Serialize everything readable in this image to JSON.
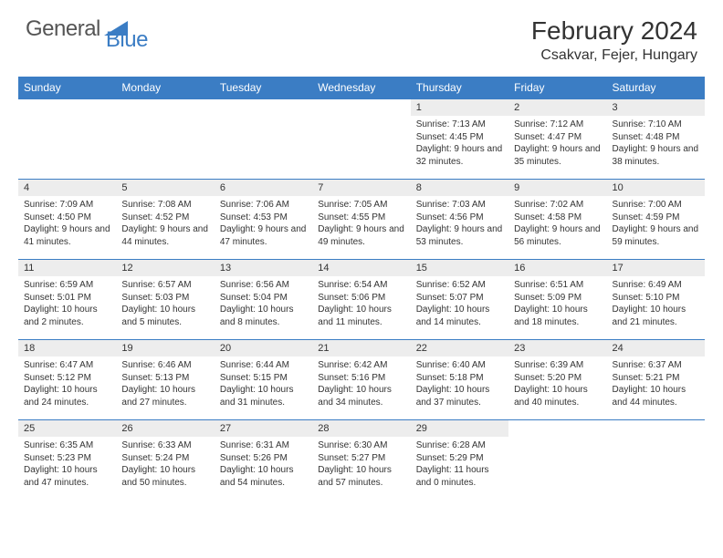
{
  "branding": {
    "word1": "General",
    "word2": "Blue",
    "word1_color": "#555555",
    "word2_color": "#3b7dc4",
    "logo_shape_color": "#3b7dc4"
  },
  "header": {
    "title": "February 2024",
    "location": "Csakvar, Fejer, Hungary"
  },
  "style": {
    "header_bg": "#3b7dc4",
    "header_text": "#ffffff",
    "daynum_bg": "#ededed",
    "row_divider": "#3b7dc4",
    "page_bg": "#ffffff",
    "body_text": "#333333",
    "title_fontsize": 28,
    "location_fontsize": 16,
    "dayhead_fontsize": 12,
    "cell_fontsize": 10
  },
  "weekdays": [
    "Sunday",
    "Monday",
    "Tuesday",
    "Wednesday",
    "Thursday",
    "Friday",
    "Saturday"
  ],
  "weeks": [
    [
      {
        "blank": true
      },
      {
        "blank": true
      },
      {
        "blank": true
      },
      {
        "blank": true
      },
      {
        "day": "1",
        "sunrise": "Sunrise: 7:13 AM",
        "sunset": "Sunset: 4:45 PM",
        "daylight": "Daylight: 9 hours and 32 minutes."
      },
      {
        "day": "2",
        "sunrise": "Sunrise: 7:12 AM",
        "sunset": "Sunset: 4:47 PM",
        "daylight": "Daylight: 9 hours and 35 minutes."
      },
      {
        "day": "3",
        "sunrise": "Sunrise: 7:10 AM",
        "sunset": "Sunset: 4:48 PM",
        "daylight": "Daylight: 9 hours and 38 minutes."
      }
    ],
    [
      {
        "day": "4",
        "sunrise": "Sunrise: 7:09 AM",
        "sunset": "Sunset: 4:50 PM",
        "daylight": "Daylight: 9 hours and 41 minutes."
      },
      {
        "day": "5",
        "sunrise": "Sunrise: 7:08 AM",
        "sunset": "Sunset: 4:52 PM",
        "daylight": "Daylight: 9 hours and 44 minutes."
      },
      {
        "day": "6",
        "sunrise": "Sunrise: 7:06 AM",
        "sunset": "Sunset: 4:53 PM",
        "daylight": "Daylight: 9 hours and 47 minutes."
      },
      {
        "day": "7",
        "sunrise": "Sunrise: 7:05 AM",
        "sunset": "Sunset: 4:55 PM",
        "daylight": "Daylight: 9 hours and 49 minutes."
      },
      {
        "day": "8",
        "sunrise": "Sunrise: 7:03 AM",
        "sunset": "Sunset: 4:56 PM",
        "daylight": "Daylight: 9 hours and 53 minutes."
      },
      {
        "day": "9",
        "sunrise": "Sunrise: 7:02 AM",
        "sunset": "Sunset: 4:58 PM",
        "daylight": "Daylight: 9 hours and 56 minutes."
      },
      {
        "day": "10",
        "sunrise": "Sunrise: 7:00 AM",
        "sunset": "Sunset: 4:59 PM",
        "daylight": "Daylight: 9 hours and 59 minutes."
      }
    ],
    [
      {
        "day": "11",
        "sunrise": "Sunrise: 6:59 AM",
        "sunset": "Sunset: 5:01 PM",
        "daylight": "Daylight: 10 hours and 2 minutes."
      },
      {
        "day": "12",
        "sunrise": "Sunrise: 6:57 AM",
        "sunset": "Sunset: 5:03 PM",
        "daylight": "Daylight: 10 hours and 5 minutes."
      },
      {
        "day": "13",
        "sunrise": "Sunrise: 6:56 AM",
        "sunset": "Sunset: 5:04 PM",
        "daylight": "Daylight: 10 hours and 8 minutes."
      },
      {
        "day": "14",
        "sunrise": "Sunrise: 6:54 AM",
        "sunset": "Sunset: 5:06 PM",
        "daylight": "Daylight: 10 hours and 11 minutes."
      },
      {
        "day": "15",
        "sunrise": "Sunrise: 6:52 AM",
        "sunset": "Sunset: 5:07 PM",
        "daylight": "Daylight: 10 hours and 14 minutes."
      },
      {
        "day": "16",
        "sunrise": "Sunrise: 6:51 AM",
        "sunset": "Sunset: 5:09 PM",
        "daylight": "Daylight: 10 hours and 18 minutes."
      },
      {
        "day": "17",
        "sunrise": "Sunrise: 6:49 AM",
        "sunset": "Sunset: 5:10 PM",
        "daylight": "Daylight: 10 hours and 21 minutes."
      }
    ],
    [
      {
        "day": "18",
        "sunrise": "Sunrise: 6:47 AM",
        "sunset": "Sunset: 5:12 PM",
        "daylight": "Daylight: 10 hours and 24 minutes."
      },
      {
        "day": "19",
        "sunrise": "Sunrise: 6:46 AM",
        "sunset": "Sunset: 5:13 PM",
        "daylight": "Daylight: 10 hours and 27 minutes."
      },
      {
        "day": "20",
        "sunrise": "Sunrise: 6:44 AM",
        "sunset": "Sunset: 5:15 PM",
        "daylight": "Daylight: 10 hours and 31 minutes."
      },
      {
        "day": "21",
        "sunrise": "Sunrise: 6:42 AM",
        "sunset": "Sunset: 5:16 PM",
        "daylight": "Daylight: 10 hours and 34 minutes."
      },
      {
        "day": "22",
        "sunrise": "Sunrise: 6:40 AM",
        "sunset": "Sunset: 5:18 PM",
        "daylight": "Daylight: 10 hours and 37 minutes."
      },
      {
        "day": "23",
        "sunrise": "Sunrise: 6:39 AM",
        "sunset": "Sunset: 5:20 PM",
        "daylight": "Daylight: 10 hours and 40 minutes."
      },
      {
        "day": "24",
        "sunrise": "Sunrise: 6:37 AM",
        "sunset": "Sunset: 5:21 PM",
        "daylight": "Daylight: 10 hours and 44 minutes."
      }
    ],
    [
      {
        "day": "25",
        "sunrise": "Sunrise: 6:35 AM",
        "sunset": "Sunset: 5:23 PM",
        "daylight": "Daylight: 10 hours and 47 minutes."
      },
      {
        "day": "26",
        "sunrise": "Sunrise: 6:33 AM",
        "sunset": "Sunset: 5:24 PM",
        "daylight": "Daylight: 10 hours and 50 minutes."
      },
      {
        "day": "27",
        "sunrise": "Sunrise: 6:31 AM",
        "sunset": "Sunset: 5:26 PM",
        "daylight": "Daylight: 10 hours and 54 minutes."
      },
      {
        "day": "28",
        "sunrise": "Sunrise: 6:30 AM",
        "sunset": "Sunset: 5:27 PM",
        "daylight": "Daylight: 10 hours and 57 minutes."
      },
      {
        "day": "29",
        "sunrise": "Sunrise: 6:28 AM",
        "sunset": "Sunset: 5:29 PM",
        "daylight": "Daylight: 11 hours and 0 minutes."
      },
      {
        "blank": true
      },
      {
        "blank": true
      }
    ]
  ]
}
